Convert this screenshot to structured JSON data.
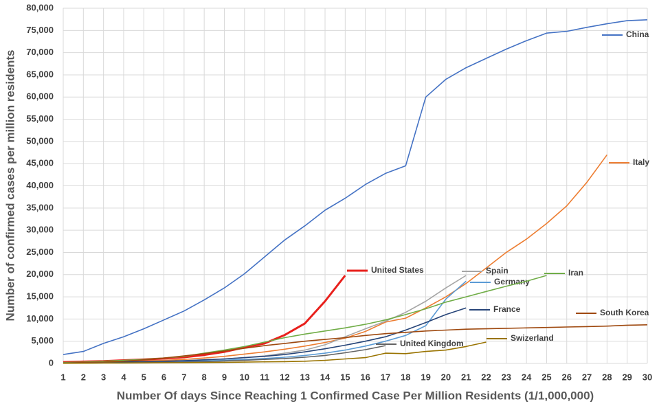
{
  "chart_data": {
    "type": "line",
    "x_label": "Number Of days Since Reaching 1 Confirmed Case Per Million Residents (1/1,000,000)",
    "y_label": "Number of confirmed cases per million residents",
    "x": [
      1,
      2,
      3,
      4,
      5,
      6,
      7,
      8,
      9,
      10,
      11,
      12,
      13,
      14,
      15,
      16,
      17,
      18,
      19,
      20,
      21,
      22,
      23,
      24,
      25,
      26,
      27,
      28,
      29,
      30
    ],
    "xlim": [
      1,
      30
    ],
    "xticks": [
      1,
      2,
      3,
      4,
      5,
      6,
      7,
      8,
      9,
      10,
      11,
      12,
      13,
      14,
      15,
      16,
      17,
      18,
      19,
      20,
      21,
      22,
      23,
      24,
      25,
      26,
      27,
      28,
      29,
      30
    ],
    "ylim": [
      0,
      80000
    ],
    "yticks": [
      0,
      {
        "value": 5000,
        "label": "5,000"
      },
      {
        "value": 10000,
        "label": "10,000"
      },
      {
        "value": 15000,
        "label": "15,000"
      },
      {
        "value": 20000,
        "label": "20,000"
      },
      {
        "value": 25000,
        "label": "25,000"
      },
      {
        "value": 30000,
        "label": "30,000"
      },
      {
        "value": 35000,
        "label": "35,000"
      },
      {
        "value": 40000,
        "label": "40,000"
      },
      {
        "value": 45000,
        "label": "45,000"
      },
      {
        "value": 50000,
        "label": "50,000"
      },
      {
        "value": 55000,
        "label": "55,000"
      },
      {
        "value": 60000,
        "label": "60,000"
      },
      {
        "value": 65000,
        "label": "65,000"
      },
      {
        "value": 70000,
        "label": "70,000"
      },
      {
        "value": 75000,
        "label": "75,000"
      },
      {
        "value": 80000,
        "label": "80,000"
      }
    ],
    "grid": true,
    "series": [
      {
        "name": "China",
        "color": "#4472c4",
        "values": [
          2000,
          2700,
          4500,
          6000,
          7800,
          9800,
          11800,
          14300,
          17000,
          20200,
          24000,
          27800,
          31000,
          34500,
          37200,
          40300,
          42800,
          44500,
          60000,
          64000,
          66600,
          68700,
          70800,
          72700,
          74400,
          74800,
          75700,
          76500,
          77200,
          77400
        ]
      },
      {
        "name": "Italy",
        "color": "#ed7d31",
        "values": [
          200,
          300,
          400,
          500,
          600,
          700,
          900,
          1200,
          1600,
          2100,
          2600,
          3200,
          3900,
          4700,
          5700,
          7200,
          9300,
          10200,
          12500,
          15000,
          18000,
          21500,
          25000,
          28000,
          31500,
          35500,
          40800,
          47000,
          null,
          null
        ]
      },
      {
        "name": "United States",
        "color": "#e8201c",
        "values": [
          300,
          400,
          500,
          700,
          900,
          1100,
          1400,
          1900,
          2600,
          3600,
          4500,
          6400,
          9000,
          14000,
          19800,
          null,
          null,
          null,
          null,
          null,
          null,
          null,
          null,
          null,
          null,
          null,
          null,
          null,
          null,
          null
        ]
      },
      {
        "name": "Spain",
        "color": "#a5a5a5",
        "values": [
          100,
          150,
          200,
          300,
          400,
          500,
          600,
          800,
          1000,
          1300,
          1700,
          2300,
          3000,
          4200,
          6000,
          7800,
          9500,
          11500,
          14000,
          17000,
          19800,
          null,
          null,
          null,
          null,
          null,
          null,
          null,
          null,
          null
        ]
      },
      {
        "name": "Germany",
        "color": "#5b9bd5",
        "values": [
          50,
          80,
          120,
          180,
          250,
          350,
          450,
          580,
          730,
          900,
          1100,
          1400,
          1800,
          2300,
          3000,
          3900,
          5000,
          6300,
          8500,
          14500,
          18500,
          null,
          null,
          null,
          null,
          null,
          null,
          null,
          null,
          null
        ]
      },
      {
        "name": "Iran",
        "color": "#70ad47",
        "values": [
          200,
          300,
          500,
          700,
          900,
          1200,
          1600,
          2300,
          3000,
          3800,
          4800,
          5800,
          6600,
          7300,
          8000,
          8800,
          9800,
          11000,
          12300,
          13800,
          15000,
          16200,
          17400,
          18500,
          19800,
          null,
          null,
          null,
          null,
          null
        ]
      },
      {
        "name": "France",
        "color": "#264478",
        "values": [
          100,
          150,
          200,
          300,
          400,
          500,
          600,
          800,
          1000,
          1300,
          1600,
          2000,
          2600,
          3300,
          4100,
          5000,
          6000,
          7500,
          9200,
          11000,
          12500,
          null,
          null,
          null,
          null,
          null,
          null,
          null,
          null,
          null
        ]
      },
      {
        "name": "South Korea",
        "color": "#9e480e",
        "values": [
          100,
          200,
          300,
          500,
          800,
          1200,
          1700,
          2200,
          2800,
          3400,
          4000,
          4500,
          5000,
          5400,
          5800,
          6300,
          6700,
          7000,
          7300,
          7500,
          7700,
          7800,
          7900,
          8000,
          8100,
          8200,
          8300,
          8400,
          8600,
          8700
        ]
      },
      {
        "name": "United Kingdom",
        "color": "#636363",
        "values": [
          50,
          80,
          120,
          160,
          200,
          250,
          300,
          400,
          550,
          700,
          900,
          1100,
          1400,
          1800,
          2400,
          3100,
          4000,
          null,
          null,
          null,
          null,
          null,
          null,
          null,
          null,
          null,
          null,
          null,
          null,
          null
        ]
      },
      {
        "name": "Swizerland",
        "color": "#997300",
        "values": [
          30,
          50,
          70,
          90,
          110,
          140,
          170,
          200,
          250,
          300,
          350,
          400,
          500,
          700,
          1000,
          1300,
          2300,
          2200,
          2700,
          3000,
          3800,
          4800,
          null,
          null,
          null,
          null,
          null,
          null,
          null,
          null
        ]
      }
    ]
  }
}
